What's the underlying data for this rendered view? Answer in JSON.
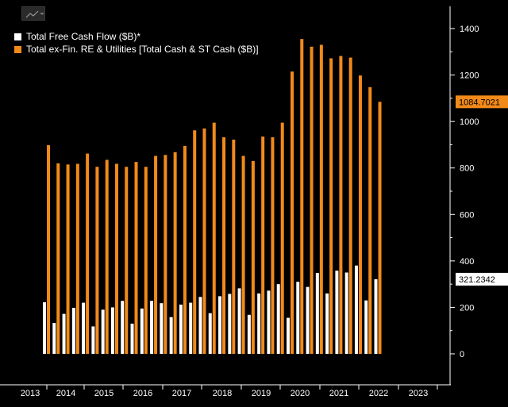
{
  "colors": {
    "fcf": "#ffffff",
    "cash": "#f28a1a",
    "background": "#000000",
    "axis": "#ffffff"
  },
  "toolbar": {
    "icon": "line-chart-icon"
  },
  "legend": {
    "items": [
      {
        "label": "Total Free Cash Flow ($B)*",
        "color": "#ffffff"
      },
      {
        "label": "Total ex-Fin. RE & Utilities [Total Cash & ST Cash ($B)]",
        "color": "#f28a1a"
      }
    ]
  },
  "chart_data": {
    "type": "bar",
    "x_tick_labels": [
      "2013",
      "2014",
      "2015",
      "2016",
      "2017",
      "2018",
      "2019",
      "2020",
      "2021",
      "2022",
      "2023"
    ],
    "y_ticks": [
      "0",
      "200",
      "400",
      "600",
      "800",
      "1000",
      "1200",
      "1400"
    ],
    "ylim": [
      0,
      1450
    ],
    "grid": false,
    "legend_position": "top-left",
    "series": [
      {
        "name": "Total Free Cash Flow ($B)*",
        "color": "#ffffff",
        "values": [
          222,
          133,
          172,
          198,
          220,
          118,
          190,
          200,
          228,
          130,
          195,
          228,
          218,
          158,
          212,
          220,
          245,
          175,
          248,
          258,
          282,
          168,
          260,
          272,
          300,
          155,
          310,
          288,
          348,
          260,
          358,
          350,
          380,
          230,
          321.2342
        ],
        "last_value_label": "321.2342"
      },
      {
        "name": "Total ex-Fin. RE & Utilities [Total Cash & ST Cash ($B)]",
        "color": "#f28a1a",
        "values": [
          898,
          820,
          815,
          818,
          862,
          805,
          835,
          818,
          805,
          826,
          805,
          852,
          856,
          868,
          895,
          962,
          970,
          995,
          932,
          922,
          852,
          830,
          935,
          932,
          995,
          1215,
          1355,
          1322,
          1330,
          1272,
          1282,
          1275,
          1198,
          1148,
          1084.7021
        ],
        "last_value_label": "1084.7021"
      }
    ]
  }
}
